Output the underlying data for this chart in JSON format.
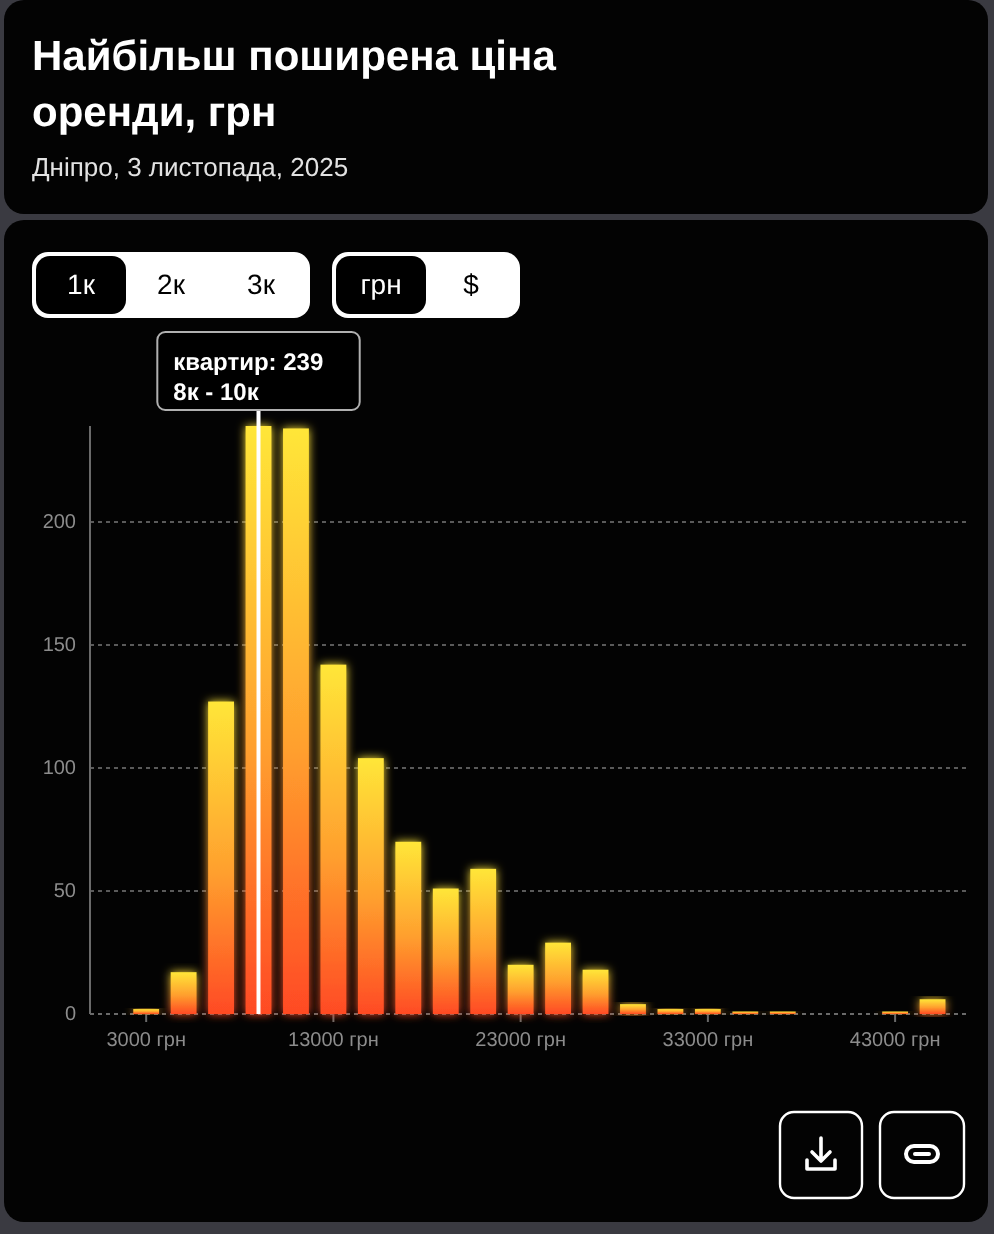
{
  "chart_data": {
    "type": "histogram",
    "title": "Найбільш поширена ціна оренди, грн",
    "subtitle": "Дніпро, 3 листопада, 2025",
    "bins": [
      2000,
      4000,
      6000,
      8000,
      10000,
      12000,
      14000,
      16000,
      18000,
      20000,
      22000,
      24000,
      26000,
      28000,
      30000,
      32000,
      34000,
      36000,
      38000,
      40000,
      42000,
      44000,
      46000
    ],
    "values": [
      2,
      17,
      127,
      239,
      238,
      142,
      104,
      70,
      51,
      59,
      20,
      29,
      18,
      4,
      2,
      2,
      1,
      1,
      0,
      0,
      1,
      6
    ],
    "color": "#ff9f2e",
    "xlim": [
      0,
      47000
    ],
    "xticks": [
      {
        "value": 3000,
        "label": "3000 грн"
      },
      {
        "value": 13000,
        "label": "13000 грн"
      },
      {
        "value": 23000,
        "label": "23000 грн"
      },
      {
        "value": 33000,
        "label": "33000 грн"
      },
      {
        "value": 43000,
        "label": "43000 грн"
      }
    ],
    "ylim": [
      0,
      239
    ],
    "yticks": [
      0,
      50,
      100,
      150,
      200
    ],
    "grid": "y",
    "ref_lines": [
      {
        "axis": "x",
        "value": 9000,
        "color": "#ffffff"
      }
    ],
    "annotations": [
      {
        "text": "квартир: 239\n8к - 10к",
        "x": 9000,
        "y": 239
      },
      "1к",
      "2к",
      "3к",
      "грн",
      "$"
    ]
  }
}
